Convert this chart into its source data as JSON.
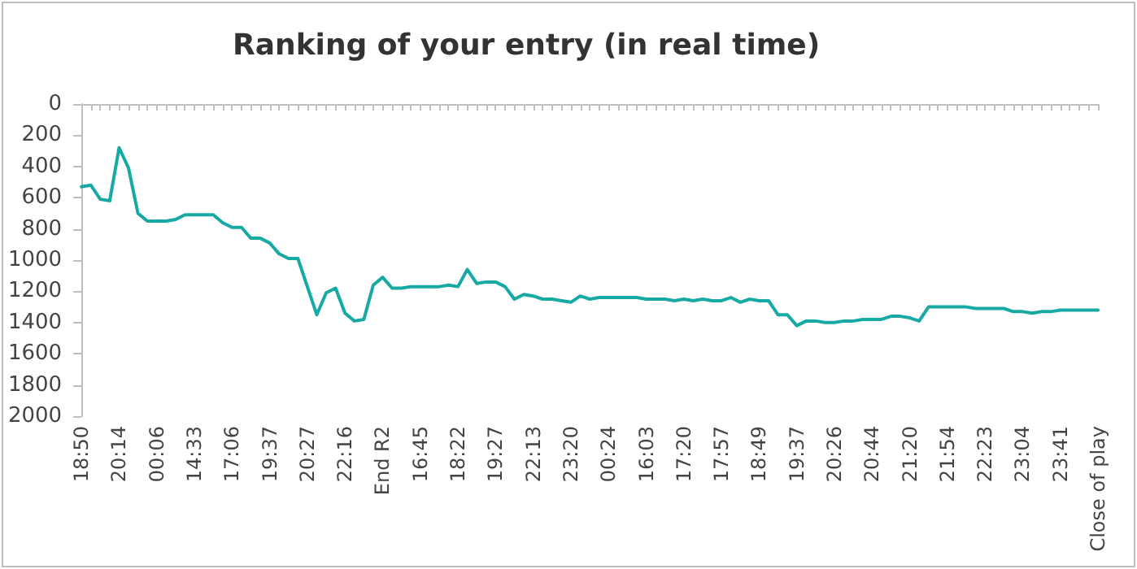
{
  "chart_data": {
    "type": "line",
    "title": "Ranking of your entry (in real time)",
    "categories": [
      "18:50",
      null,
      null,
      null,
      "20:14",
      null,
      null,
      null,
      "00:06",
      null,
      null,
      null,
      "14:33",
      null,
      null,
      null,
      "17:06",
      null,
      null,
      null,
      "19:37",
      null,
      null,
      null,
      "20:27",
      null,
      null,
      null,
      "22:16",
      null,
      null,
      null,
      "End R2",
      null,
      null,
      null,
      "16:45",
      null,
      null,
      null,
      "18:22",
      null,
      null,
      null,
      "19:27",
      null,
      null,
      null,
      "22:13",
      null,
      null,
      null,
      "23:20",
      null,
      null,
      null,
      "00:24",
      null,
      null,
      null,
      "16:03",
      null,
      null,
      null,
      "17:20",
      null,
      null,
      null,
      "17:57",
      null,
      null,
      null,
      "18:49",
      null,
      null,
      null,
      "19:37",
      null,
      null,
      null,
      "20:26",
      null,
      null,
      null,
      "20:44",
      null,
      null,
      null,
      "21:20",
      null,
      null,
      null,
      "21:54",
      null,
      null,
      null,
      "22:23",
      null,
      null,
      null,
      "23:04",
      null,
      null,
      null,
      "23:41",
      null,
      null,
      null,
      "Close of play"
    ],
    "series": [
      {
        "color": "#17aaa5",
        "values": [
          530,
          520,
          610,
          620,
          280,
          410,
          700,
          750,
          750,
          750,
          740,
          710,
          710,
          710,
          710,
          760,
          790,
          790,
          860,
          860,
          890,
          960,
          990,
          990,
          1170,
          1350,
          1210,
          1180,
          1340,
          1390,
          1380,
          1160,
          1110,
          1180,
          1180,
          1170,
          1170,
          1170,
          1170,
          1160,
          1170,
          1060,
          1150,
          1140,
          1140,
          1170,
          1250,
          1220,
          1230,
          1250,
          1250,
          1260,
          1270,
          1230,
          1250,
          1240,
          1240,
          1240,
          1240,
          1240,
          1250,
          1250,
          1250,
          1260,
          1250,
          1260,
          1250,
          1260,
          1260,
          1240,
          1270,
          1250,
          1260,
          1260,
          1350,
          1350,
          1420,
          1390,
          1390,
          1400,
          1400,
          1390,
          1390,
          1380,
          1380,
          1380,
          1360,
          1360,
          1370,
          1390,
          1300,
          1300,
          1300,
          1300,
          1300,
          1310,
          1310,
          1310,
          1310,
          1330,
          1330,
          1340,
          1330,
          1330,
          1320,
          1320,
          1320,
          1320,
          1320
        ]
      }
    ],
    "ylim": [
      2000,
      0
    ],
    "yticks": [
      0,
      200,
      400,
      600,
      800,
      1000,
      1200,
      1400,
      1600,
      1800,
      2000
    ],
    "grid": false,
    "marker": "none",
    "line_style": "solid"
  }
}
